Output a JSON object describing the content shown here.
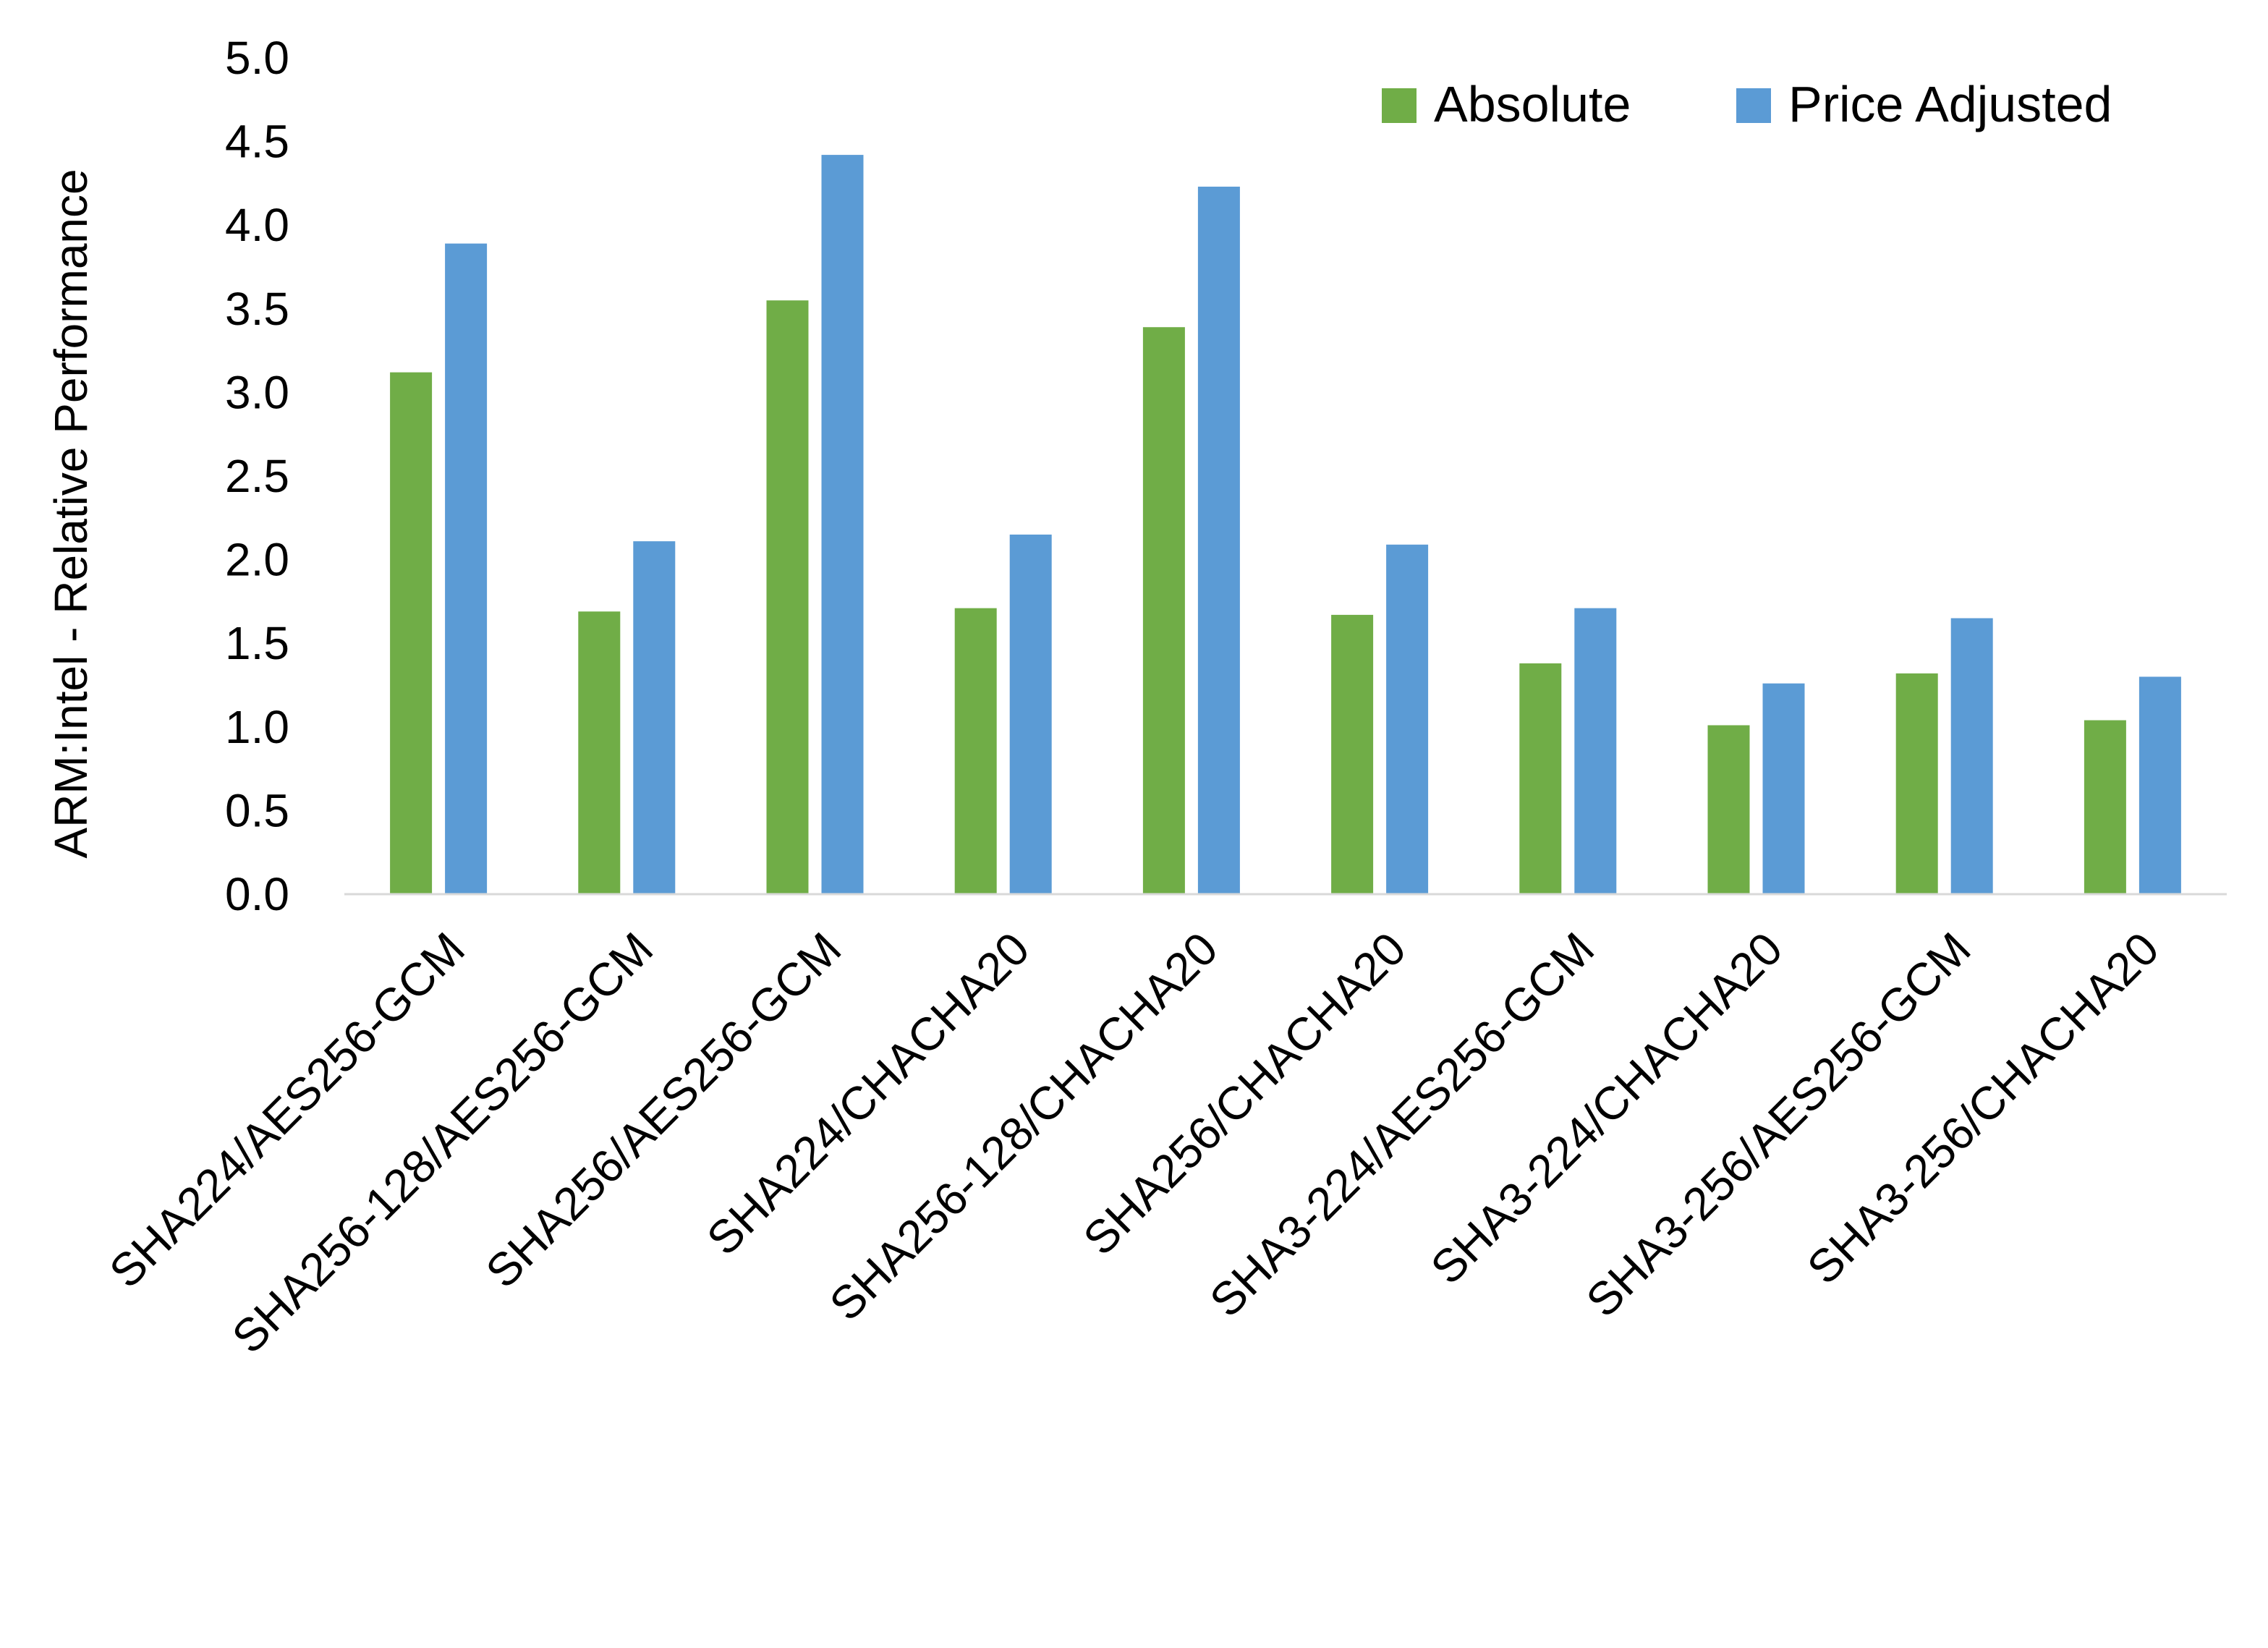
{
  "chart_data": {
    "type": "bar",
    "title": "",
    "xlabel": "",
    "ylabel": "ARM:Intel - Relative Performance",
    "ylim": [
      0,
      5
    ],
    "yticks": [
      "0.0",
      "0.5",
      "1.0",
      "1.5",
      "2.0",
      "2.5",
      "3.0",
      "3.5",
      "4.0",
      "4.5",
      "5.0"
    ],
    "grid": false,
    "legend_position": "top-right",
    "categories": [
      "SHA224/AES256-GCM",
      "SHA256-128/AES256-GCM",
      "SHA256/AES256-GCM",
      "SHA224/CHACHA20",
      "SHA256-128/CHACHA20",
      "SHA256/CHACHA20",
      "SHA3-224/AES256-GCM",
      "SHA3-224/CHACHA20",
      "SHA3-256/AES256-GCM",
      "SHA3-256/CHACHA20"
    ],
    "series": [
      {
        "name": "Absolute",
        "color": "#70ad47",
        "values": [
          3.12,
          1.69,
          3.55,
          1.71,
          3.39,
          1.67,
          1.38,
          1.01,
          1.32,
          1.04
        ]
      },
      {
        "name": "Price Adjusted",
        "color": "#5b9bd5",
        "values": [
          3.89,
          2.11,
          4.42,
          2.15,
          4.23,
          2.09,
          1.71,
          1.26,
          1.65,
          1.3
        ]
      }
    ]
  }
}
